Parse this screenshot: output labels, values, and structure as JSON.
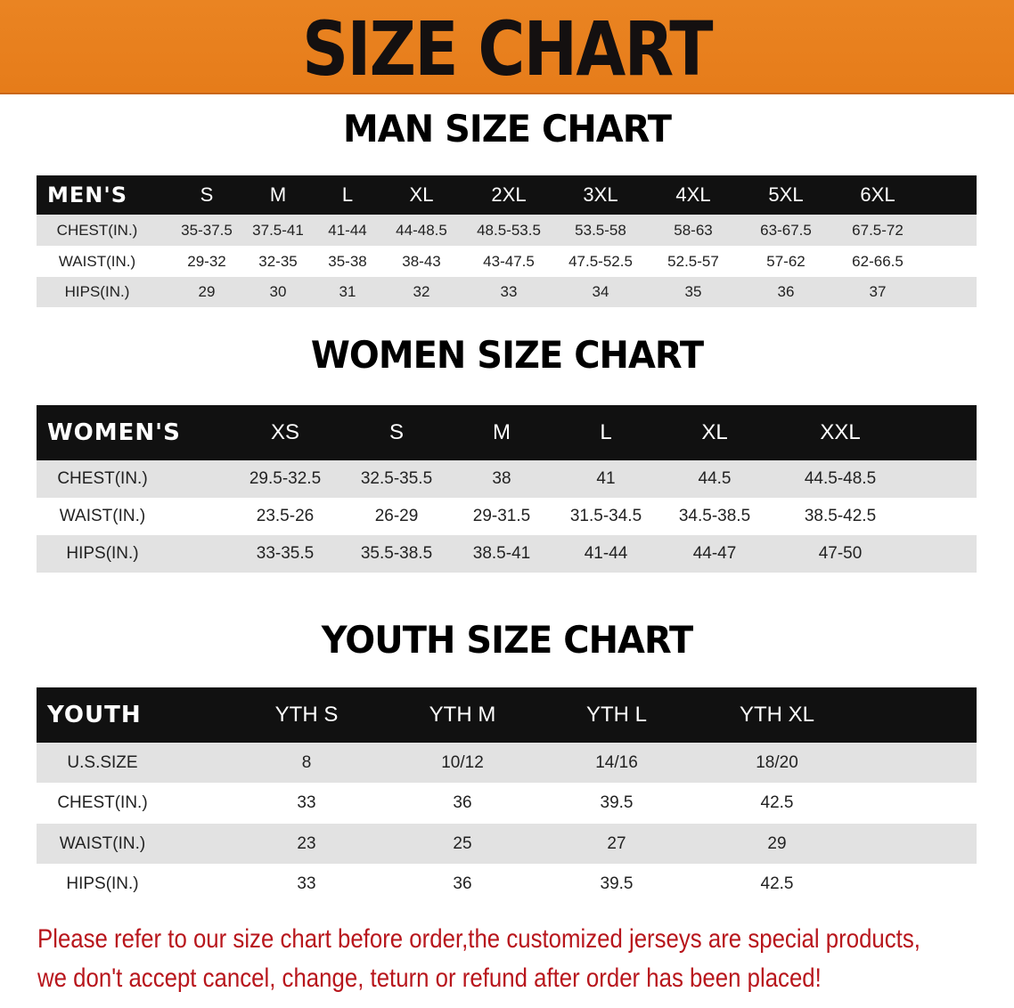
{
  "banner": {
    "title": "SIZE CHART",
    "color": "#e8801f"
  },
  "men": {
    "title": "MAN SIZE CHART",
    "header": [
      "MEN'S",
      "S",
      "M",
      "L",
      "XL",
      "2XL",
      "3XL",
      "4XL",
      "5XL",
      "6XL"
    ],
    "rows": [
      {
        "label": "CHEST(IN.)",
        "values": [
          "35-37.5",
          "37.5-41",
          "41-44",
          "44-48.5",
          "48.5-53.5",
          "53.5-58",
          "58-63",
          "63-67.5",
          "67.5-72"
        ]
      },
      {
        "label": "WAIST(IN.)",
        "values": [
          "29-32",
          "32-35",
          "35-38",
          "38-43",
          "43-47.5",
          "47.5-52.5",
          "52.5-57",
          "57-62",
          "62-66.5"
        ]
      },
      {
        "label": "HIPS(IN.)",
        "values": [
          "29",
          "30",
          "31",
          "32",
          "33",
          "34",
          "35",
          "36",
          "37"
        ]
      }
    ]
  },
  "women": {
    "title": "WOMEN SIZE CHART",
    "header": [
      "WOMEN'S",
      "XS",
      "S",
      "M",
      "L",
      "XL",
      "XXL"
    ],
    "rows": [
      {
        "label": "CHEST(IN.)",
        "values": [
          "29.5-32.5",
          "32.5-35.5",
          "38",
          "41",
          "44.5",
          "44.5-48.5"
        ]
      },
      {
        "label": "WAIST(IN.)",
        "values": [
          "23.5-26",
          "26-29",
          "29-31.5",
          "31.5-34.5",
          "34.5-38.5",
          "38.5-42.5"
        ]
      },
      {
        "label": "HIPS(IN.)",
        "values": [
          "33-35.5",
          "35.5-38.5",
          "38.5-41",
          "41-44",
          "44-47",
          "47-50"
        ]
      }
    ]
  },
  "youth": {
    "title": "YOUTH SIZE CHART",
    "header": [
      "YOUTH",
      "YTH S",
      "YTH M",
      "YTH L",
      "YTH XL"
    ],
    "rows": [
      {
        "label": "U.S.SIZE",
        "values": [
          "8",
          "10/12",
          "14/16",
          "18/20"
        ]
      },
      {
        "label": "CHEST(IN.)",
        "values": [
          "33",
          "36",
          "39.5",
          "42.5"
        ]
      },
      {
        "label": "WAIST(IN.)",
        "values": [
          "23",
          "25",
          "27",
          "29"
        ]
      },
      {
        "label": "HIPS(IN.)",
        "values": [
          "33",
          "36",
          "39.5",
          "42.5"
        ]
      }
    ]
  },
  "note": {
    "line1": "Please refer to our size chart before order,the customized jerseys are special products,",
    "line2": "we don't accept cancel, change, teturn or refund after order has been placed!",
    "color": "#b8161c"
  }
}
